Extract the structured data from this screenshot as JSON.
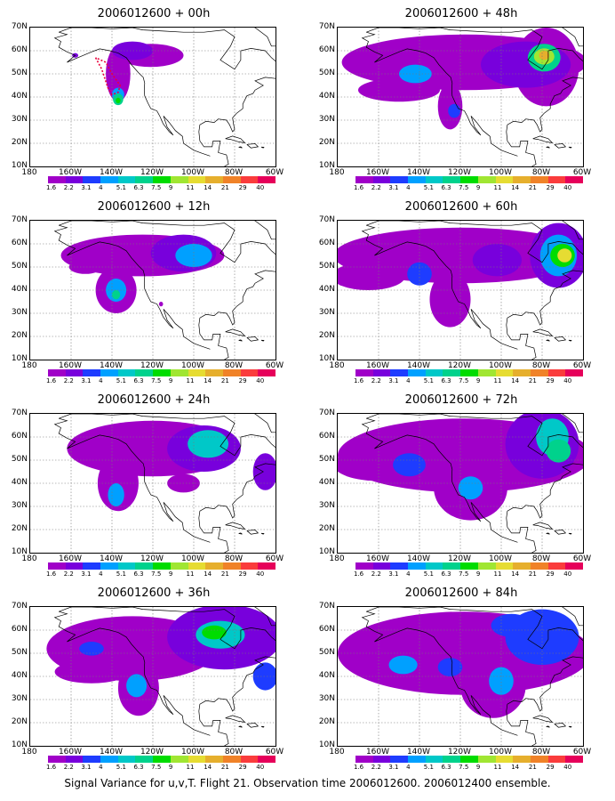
{
  "panels": [
    {
      "title": "2006012600 + 00h",
      "forecast_hour": 0
    },
    {
      "title": "2006012600 + 48h",
      "forecast_hour": 48
    },
    {
      "title": "2006012600 + 12h",
      "forecast_hour": 12
    },
    {
      "title": "2006012600 + 60h",
      "forecast_hour": 60
    },
    {
      "title": "2006012600 + 24h",
      "forecast_hour": 24
    },
    {
      "title": "2006012600 + 72h",
      "forecast_hour": 72
    },
    {
      "title": "2006012600 + 36h",
      "forecast_hour": 36
    },
    {
      "title": "2006012600 + 84h",
      "forecast_hour": 84
    }
  ],
  "lat_labels": [
    "70N",
    "60N",
    "50N",
    "40N",
    "30N",
    "20N",
    "10N"
  ],
  "lon_labels": [
    "180",
    "160W",
    "140W",
    "120W",
    "100W",
    "80W",
    "60W"
  ],
  "colorbar": {
    "labels": [
      "1.6",
      "2.2",
      "3.1",
      "4",
      "5.1",
      "6.3",
      "7.5",
      "9",
      "11",
      "14",
      "21",
      "29",
      "40"
    ],
    "colors": [
      "#a000c8",
      "#7800dc",
      "#1e3cff",
      "#00a0ff",
      "#00c8c8",
      "#00d28c",
      "#00dc00",
      "#a0e632",
      "#e6dc32",
      "#e6af2d",
      "#f08228",
      "#fa3c3c",
      "#e6005a"
    ]
  },
  "footer": "Signal Variance for u,v,T. Flight 21. Observation time 2006012600. 2006012400 ensemble."
}
